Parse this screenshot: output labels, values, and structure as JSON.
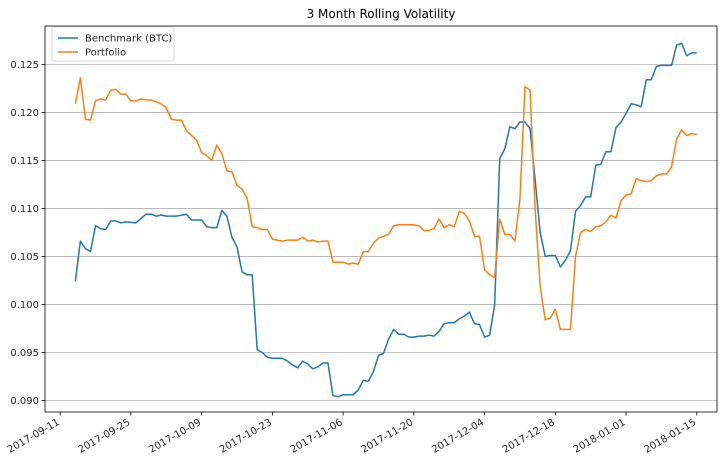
{
  "chart_data": {
    "type": "line",
    "title": "3 Month Rolling Volatility",
    "xlabel": "",
    "ylabel": "",
    "x_range": [
      "2017-09-08",
      "2018-01-19"
    ],
    "ylim": [
      0.0888,
      0.129
    ],
    "grid": "horizontal",
    "legend_position": "top-left",
    "x_ticks": [
      "2017-09-11",
      "2017-09-25",
      "2017-10-09",
      "2017-10-23",
      "2017-11-06",
      "2017-11-20",
      "2017-12-04",
      "2017-12-18",
      "2018-01-01",
      "2018-01-15"
    ],
    "y_ticks": [
      "0.090",
      "0.095",
      "0.100",
      "0.105",
      "0.110",
      "0.115",
      "0.120",
      "0.125"
    ],
    "y_tick_values": [
      0.09,
      0.095,
      0.1,
      0.105,
      0.11,
      0.115,
      0.12,
      0.125
    ],
    "series": [
      {
        "name": "Benchmark (BTC)",
        "color": "#1f77b4",
        "points": [
          [
            "2017-09-14",
            0.1024
          ],
          [
            "2017-09-15",
            0.1066
          ],
          [
            "2017-09-16",
            0.1058
          ],
          [
            "2017-09-17",
            0.1055
          ],
          [
            "2017-09-18",
            0.1082
          ],
          [
            "2017-09-19",
            0.1079
          ],
          [
            "2017-09-20",
            0.1078
          ],
          [
            "2017-09-21",
            0.1087
          ],
          [
            "2017-09-22",
            0.1087
          ],
          [
            "2017-09-23",
            0.1085
          ],
          [
            "2017-09-24",
            0.1086
          ],
          [
            "2017-09-26",
            0.1085
          ],
          [
            "2017-09-28",
            0.1094
          ],
          [
            "2017-09-29",
            0.1094
          ],
          [
            "2017-09-30",
            0.1092
          ],
          [
            "2017-10-01",
            0.1093
          ],
          [
            "2017-10-02",
            0.1092
          ],
          [
            "2017-10-04",
            0.1092
          ],
          [
            "2017-10-06",
            0.1094
          ],
          [
            "2017-10-07",
            0.1088
          ],
          [
            "2017-10-08",
            0.1088
          ],
          [
            "2017-10-09",
            0.1088
          ],
          [
            "2017-10-10",
            0.1081
          ],
          [
            "2017-10-11",
            0.108
          ],
          [
            "2017-10-12",
            0.108
          ],
          [
            "2017-10-13",
            0.1098
          ],
          [
            "2017-10-14",
            0.1092
          ],
          [
            "2017-10-15",
            0.107
          ],
          [
            "2017-10-16",
            0.106
          ],
          [
            "2017-10-17",
            0.1034
          ],
          [
            "2017-10-18",
            0.1031
          ],
          [
            "2017-10-19",
            0.1031
          ],
          [
            "2017-10-20",
            0.0953
          ],
          [
            "2017-10-21",
            0.095
          ],
          [
            "2017-10-22",
            0.0945
          ],
          [
            "2017-10-23",
            0.0944
          ],
          [
            "2017-10-25",
            0.0944
          ],
          [
            "2017-10-26",
            0.0941
          ],
          [
            "2017-10-27",
            0.0937
          ],
          [
            "2017-10-28",
            0.0934
          ],
          [
            "2017-10-29",
            0.0941
          ],
          [
            "2017-10-30",
            0.0938
          ],
          [
            "2017-10-31",
            0.0933
          ],
          [
            "2017-11-01",
            0.0935
          ],
          [
            "2017-11-02",
            0.0939
          ],
          [
            "2017-11-03",
            0.0939
          ],
          [
            "2017-11-04",
            0.0905
          ],
          [
            "2017-11-05",
            0.0904
          ],
          [
            "2017-11-06",
            0.0906
          ],
          [
            "2017-11-08",
            0.0906
          ],
          [
            "2017-11-09",
            0.0911
          ],
          [
            "2017-11-10",
            0.0921
          ],
          [
            "2017-11-11",
            0.092
          ],
          [
            "2017-11-12",
            0.093
          ],
          [
            "2017-11-13",
            0.0947
          ],
          [
            "2017-11-14",
            0.0949
          ],
          [
            "2017-11-15",
            0.0964
          ],
          [
            "2017-11-16",
            0.0974
          ],
          [
            "2017-11-17",
            0.0969
          ],
          [
            "2017-11-18",
            0.0969
          ],
          [
            "2017-11-19",
            0.0966
          ],
          [
            "2017-11-20",
            0.0966
          ],
          [
            "2017-11-21",
            0.0967
          ],
          [
            "2017-11-22",
            0.0967
          ],
          [
            "2017-11-23",
            0.0968
          ],
          [
            "2017-11-24",
            0.0967
          ],
          [
            "2017-11-25",
            0.0972
          ],
          [
            "2017-11-26",
            0.098
          ],
          [
            "2017-11-27",
            0.0981
          ],
          [
            "2017-11-28",
            0.0981
          ],
          [
            "2017-11-29",
            0.0985
          ],
          [
            "2017-11-30",
            0.0988
          ],
          [
            "2017-12-01",
            0.0992
          ],
          [
            "2017-12-02",
            0.098
          ],
          [
            "2017-12-03",
            0.0979
          ],
          [
            "2017-12-04",
            0.0966
          ],
          [
            "2017-12-05",
            0.0968
          ],
          [
            "2017-12-06",
            0.1
          ],
          [
            "2017-12-07",
            0.1152
          ],
          [
            "2017-12-08",
            0.1162
          ],
          [
            "2017-12-09",
            0.1185
          ],
          [
            "2017-12-10",
            0.1183
          ],
          [
            "2017-12-11",
            0.119
          ],
          [
            "2017-12-12",
            0.119
          ],
          [
            "2017-12-13",
            0.1183
          ],
          [
            "2017-12-14",
            0.113
          ],
          [
            "2017-12-15",
            0.1075
          ],
          [
            "2017-12-16",
            0.105
          ],
          [
            "2017-12-17",
            0.1051
          ],
          [
            "2017-12-18",
            0.1051
          ],
          [
            "2017-12-19",
            0.1039
          ],
          [
            "2017-12-20",
            0.1046
          ],
          [
            "2017-12-21",
            0.1056
          ],
          [
            "2017-12-22",
            0.1097
          ],
          [
            "2017-12-23",
            0.1103
          ],
          [
            "2017-12-24",
            0.1112
          ],
          [
            "2017-12-25",
            0.1112
          ],
          [
            "2017-12-26",
            0.1145
          ],
          [
            "2017-12-27",
            0.1146
          ],
          [
            "2017-12-28",
            0.1159
          ],
          [
            "2017-12-29",
            0.1159
          ],
          [
            "2017-12-30",
            0.1184
          ],
          [
            "2017-12-31",
            0.119
          ],
          [
            "2018-01-01",
            0.1199
          ],
          [
            "2018-01-02",
            0.1209
          ],
          [
            "2018-01-03",
            0.1208
          ],
          [
            "2018-01-04",
            0.1206
          ],
          [
            "2018-01-05",
            0.1234
          ],
          [
            "2018-01-06",
            0.1234
          ],
          [
            "2018-01-07",
            0.1248
          ],
          [
            "2018-01-08",
            0.1249
          ],
          [
            "2018-01-09",
            0.1249
          ],
          [
            "2018-01-10",
            0.1249
          ],
          [
            "2018-01-11",
            0.127
          ],
          [
            "2018-01-12",
            0.1272
          ],
          [
            "2018-01-13",
            0.1259
          ],
          [
            "2018-01-14",
            0.1262
          ],
          [
            "2018-01-15",
            0.1262
          ]
        ]
      },
      {
        "name": "Portfolio",
        "color": "#ff7f0e",
        "points": [
          [
            "2017-09-14",
            0.1209
          ],
          [
            "2017-09-15",
            0.1236
          ],
          [
            "2017-09-16",
            0.1193
          ],
          [
            "2017-09-17",
            0.1192
          ],
          [
            "2017-09-18",
            0.1212
          ],
          [
            "2017-09-19",
            0.1214
          ],
          [
            "2017-09-20",
            0.1213
          ],
          [
            "2017-09-21",
            0.1223
          ],
          [
            "2017-09-22",
            0.1224
          ],
          [
            "2017-09-23",
            0.1219
          ],
          [
            "2017-09-24",
            0.1219
          ],
          [
            "2017-09-25",
            0.1212
          ],
          [
            "2017-09-26",
            0.1212
          ],
          [
            "2017-09-27",
            0.1214
          ],
          [
            "2017-09-28",
            0.1213
          ],
          [
            "2017-09-29",
            0.1213
          ],
          [
            "2017-09-30",
            0.1211
          ],
          [
            "2017-10-01",
            0.1209
          ],
          [
            "2017-10-02",
            0.1205
          ],
          [
            "2017-10-03",
            0.1193
          ],
          [
            "2017-10-04",
            0.1192
          ],
          [
            "2017-10-05",
            0.1192
          ],
          [
            "2017-10-06",
            0.1181
          ],
          [
            "2017-10-07",
            0.1176
          ],
          [
            "2017-10-08",
            0.1171
          ],
          [
            "2017-10-09",
            0.1158
          ],
          [
            "2017-10-10",
            0.1155
          ],
          [
            "2017-10-11",
            0.115
          ],
          [
            "2017-10-12",
            0.1166
          ],
          [
            "2017-10-13",
            0.1157
          ],
          [
            "2017-10-14",
            0.1139
          ],
          [
            "2017-10-15",
            0.1138
          ],
          [
            "2017-10-16",
            0.1124
          ],
          [
            "2017-10-17",
            0.112
          ],
          [
            "2017-10-18",
            0.1111
          ],
          [
            "2017-10-19",
            0.1081
          ],
          [
            "2017-10-20",
            0.108
          ],
          [
            "2017-10-21",
            0.1078
          ],
          [
            "2017-10-22",
            0.1078
          ],
          [
            "2017-10-23",
            0.1068
          ],
          [
            "2017-10-24",
            0.1067
          ],
          [
            "2017-10-25",
            0.1066
          ],
          [
            "2017-10-26",
            0.1067
          ],
          [
            "2017-10-27",
            0.1067
          ],
          [
            "2017-10-28",
            0.1067
          ],
          [
            "2017-10-29",
            0.107
          ],
          [
            "2017-10-30",
            0.1066
          ],
          [
            "2017-10-31",
            0.1067
          ],
          [
            "2017-11-01",
            0.1065
          ],
          [
            "2017-11-02",
            0.1066
          ],
          [
            "2017-11-03",
            0.1066
          ],
          [
            "2017-11-04",
            0.1044
          ],
          [
            "2017-11-05",
            0.1044
          ],
          [
            "2017-11-06",
            0.1044
          ],
          [
            "2017-11-07",
            0.1042
          ],
          [
            "2017-11-08",
            0.1043
          ],
          [
            "2017-11-09",
            0.1042
          ],
          [
            "2017-11-10",
            0.1055
          ],
          [
            "2017-11-11",
            0.1055
          ],
          [
            "2017-11-12",
            0.1064
          ],
          [
            "2017-11-13",
            0.1069
          ],
          [
            "2017-11-14",
            0.1071
          ],
          [
            "2017-11-15",
            0.1073
          ],
          [
            "2017-11-16",
            0.1082
          ],
          [
            "2017-11-17",
            0.1083
          ],
          [
            "2017-11-18",
            0.1083
          ],
          [
            "2017-11-19",
            0.1083
          ],
          [
            "2017-11-20",
            0.1083
          ],
          [
            "2017-11-21",
            0.1082
          ],
          [
            "2017-11-22",
            0.1077
          ],
          [
            "2017-11-23",
            0.1077
          ],
          [
            "2017-11-24",
            0.1079
          ],
          [
            "2017-11-25",
            0.1089
          ],
          [
            "2017-11-26",
            0.108
          ],
          [
            "2017-11-27",
            0.1083
          ],
          [
            "2017-11-28",
            0.1081
          ],
          [
            "2017-11-29",
            0.1097
          ],
          [
            "2017-11-30",
            0.1095
          ],
          [
            "2017-12-01",
            0.1087
          ],
          [
            "2017-12-02",
            0.1071
          ],
          [
            "2017-12-03",
            0.1071
          ],
          [
            "2017-12-04",
            0.1036
          ],
          [
            "2017-12-05",
            0.1031
          ],
          [
            "2017-12-06",
            0.1028
          ],
          [
            "2017-12-07",
            0.1089
          ],
          [
            "2017-12-08",
            0.1073
          ],
          [
            "2017-12-09",
            0.1073
          ],
          [
            "2017-12-10",
            0.1066
          ],
          [
            "2017-12-11",
            0.111
          ],
          [
            "2017-12-12",
            0.1227
          ],
          [
            "2017-12-13",
            0.1223
          ],
          [
            "2017-12-14",
            0.11
          ],
          [
            "2017-12-15",
            0.1019
          ],
          [
            "2017-12-16",
            0.0984
          ],
          [
            "2017-12-17",
            0.0986
          ],
          [
            "2017-12-18",
            0.0995
          ],
          [
            "2017-12-19",
            0.0974
          ],
          [
            "2017-12-20",
            0.0974
          ],
          [
            "2017-12-21",
            0.0974
          ],
          [
            "2017-12-22",
            0.105
          ],
          [
            "2017-12-23",
            0.1075
          ],
          [
            "2017-12-24",
            0.1078
          ],
          [
            "2017-12-25",
            0.1076
          ],
          [
            "2017-12-26",
            0.1081
          ],
          [
            "2017-12-27",
            0.1082
          ],
          [
            "2017-12-28",
            0.1086
          ],
          [
            "2017-12-29",
            0.1093
          ],
          [
            "2017-12-30",
            0.109
          ],
          [
            "2017-12-31",
            0.1108
          ],
          [
            "2018-01-01",
            0.1114
          ],
          [
            "2018-01-02",
            0.1115
          ],
          [
            "2018-01-03",
            0.1131
          ],
          [
            "2018-01-04",
            0.1129
          ],
          [
            "2018-01-05",
            0.1128
          ],
          [
            "2018-01-06",
            0.1129
          ],
          [
            "2018-01-07",
            0.1134
          ],
          [
            "2018-01-08",
            0.1136
          ],
          [
            "2018-01-09",
            0.1136
          ],
          [
            "2018-01-10",
            0.1143
          ],
          [
            "2018-01-11",
            0.1172
          ],
          [
            "2018-01-12",
            0.1182
          ],
          [
            "2018-01-13",
            0.1176
          ],
          [
            "2018-01-14",
            0.1178
          ],
          [
            "2018-01-15",
            0.1177
          ]
        ]
      }
    ]
  }
}
